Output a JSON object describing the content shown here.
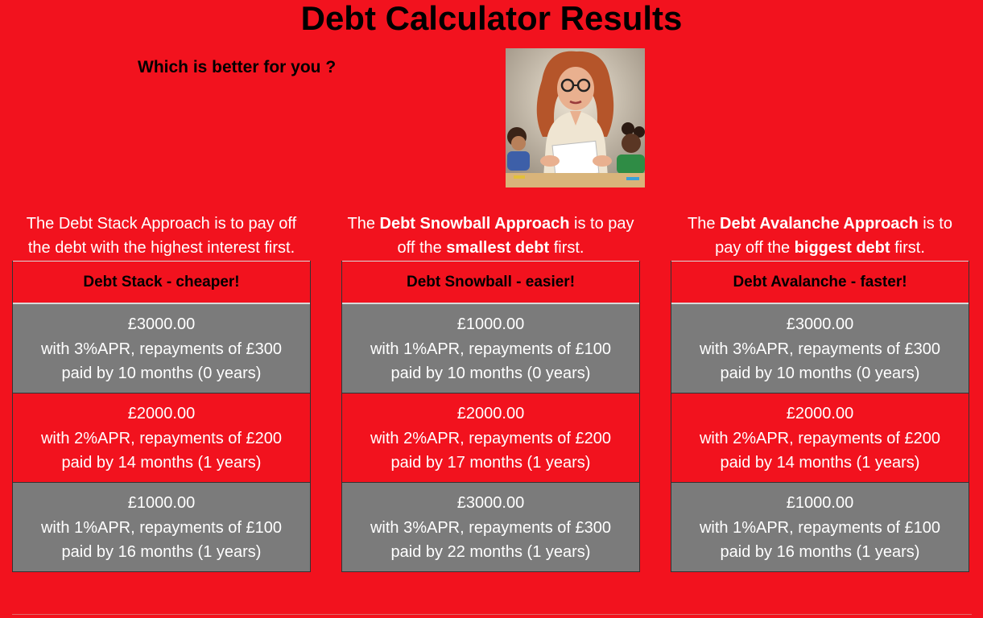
{
  "page": {
    "title": "Debt Calculator Results",
    "subtitle": "Which is better for you ?",
    "background_color": "#f2121e",
    "row_gray_color": "#7b7b7b"
  },
  "columns": [
    {
      "intro_parts": [
        {
          "text": "The Debt Stack Approach is to pay off the debt with the highest interest first.",
          "bold": false
        }
      ],
      "header": "Debt Stack - cheaper!",
      "rows": [
        {
          "amount": "£3000.00",
          "terms": "with 3%APR, repayments of £300",
          "paid": "paid by 10 months (0 years)"
        },
        {
          "amount": "£2000.00",
          "terms": "with 2%APR, repayments of £200",
          "paid": "paid by 14 months (1 years)"
        },
        {
          "amount": "£1000.00",
          "terms": "with 1%APR, repayments of £100",
          "paid": "paid by 16 months (1 years)"
        }
      ]
    },
    {
      "intro_parts": [
        {
          "text": "The ",
          "bold": false
        },
        {
          "text": "Debt Snowball Approach",
          "bold": true
        },
        {
          "text": " is to pay off the ",
          "bold": false
        },
        {
          "text": "smallest debt",
          "bold": true
        },
        {
          "text": " first.",
          "bold": false
        }
      ],
      "header": "Debt Snowball - easier!",
      "rows": [
        {
          "amount": "£1000.00",
          "terms": "with 1%APR, repayments of £100",
          "paid": "paid by 10 months (0 years)"
        },
        {
          "amount": "£2000.00",
          "terms": "with 2%APR, repayments of £200",
          "paid": "paid by 17 months (1 years)"
        },
        {
          "amount": "£3000.00",
          "terms": "with 3%APR, repayments of £300",
          "paid": "paid by 22 months (1 years)"
        }
      ]
    },
    {
      "intro_parts": [
        {
          "text": "The ",
          "bold": false
        },
        {
          "text": "Debt Avalanche Approach",
          "bold": true
        },
        {
          "text": " is to pay off the ",
          "bold": false
        },
        {
          "text": "biggest debt",
          "bold": true
        },
        {
          "text": " first.",
          "bold": false
        }
      ],
      "header": "Debt Avalanche - faster!",
      "rows": [
        {
          "amount": "£3000.00",
          "terms": "with 3%APR, repayments of £300",
          "paid": "paid by 10 months (0 years)"
        },
        {
          "amount": "£2000.00",
          "terms": "with 2%APR, repayments of £200",
          "paid": "paid by 14 months (1 years)"
        },
        {
          "amount": "£1000.00",
          "terms": "with 1%APR, repayments of £100",
          "paid": "paid by 16 months (1 years)"
        }
      ]
    }
  ]
}
